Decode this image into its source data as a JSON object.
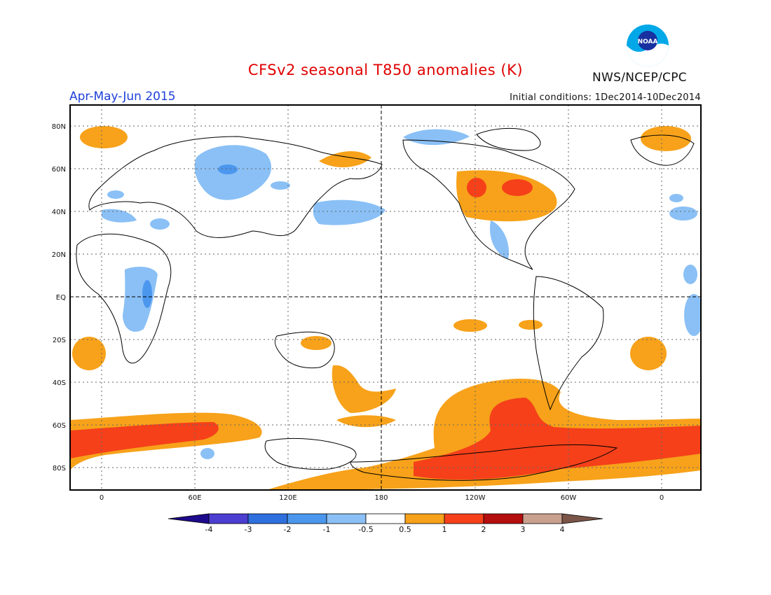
{
  "title": "CFSv2 seasonal T850 anomalies (K)",
  "period": "Apr-May-Jun 2015",
  "initial_conditions": "Initial conditions: 1Dec2014-10Dec2014",
  "agency": "NWS/NCEP/CPC",
  "logo_text": "NOAA",
  "lat_labels": [
    "80N",
    "60N",
    "40N",
    "20N",
    "EQ",
    "20S",
    "40S",
    "60S",
    "80S"
  ],
  "lon_labels": [
    "0",
    "60E",
    "120E",
    "180",
    "120W",
    "60W",
    "0"
  ],
  "colorbar": {
    "colors": [
      "#1e0a8c",
      "#4b3ed1",
      "#2f6fde",
      "#4b97ee",
      "#8ac0f5",
      "#ffffff",
      "#f7a21a",
      "#f5401a",
      "#b50e0e",
      "#caa08f",
      "#7a5548"
    ],
    "labels": [
      "-4",
      "-3",
      "-2",
      "-1",
      "-0.5",
      "0.5",
      "1",
      "2",
      "3",
      "4"
    ]
  },
  "legend_categories": {
    "cold_strong": "#4b97ee",
    "cold_weak": "#8ac0f5",
    "warm_weak": "#f7a21a",
    "warm_strong": "#f5401a"
  }
}
